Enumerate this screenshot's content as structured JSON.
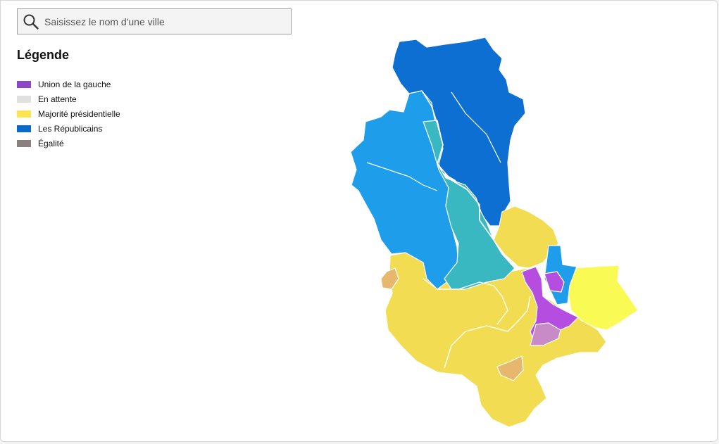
{
  "search": {
    "placeholder": "Saisissez le nom d'une ville",
    "icon": "search-icon"
  },
  "legend": {
    "title": "Légende",
    "items": [
      {
        "label": "Union de la gauche",
        "color": "#8e45c8"
      },
      {
        "label": "En attente",
        "color": "#e0e0e0"
      },
      {
        "label": "Majorité présidentielle",
        "color": "#ffe44d"
      },
      {
        "label": "Les Républicains",
        "color": "#0a68c8"
      },
      {
        "label": "Égalité",
        "color": "#8b7f80"
      }
    ]
  },
  "map_colors": {
    "republicains_dark": "#0e6fd2",
    "republicains_light": "#1e9eea",
    "teal": "#3ab8c2",
    "presidentielle": "#f1dc52",
    "presidentielle_light": "#fafa55",
    "gauche": "#b54ee0",
    "gauche_light": "#c98bc7",
    "orange": "#e8b76e"
  }
}
